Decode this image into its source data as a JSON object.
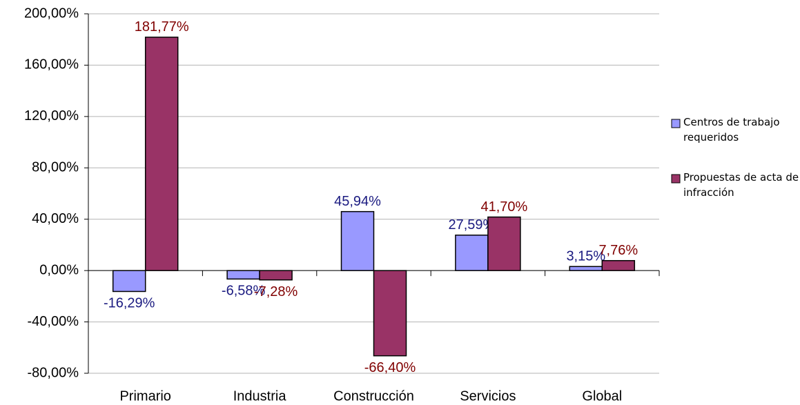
{
  "chart_data": {
    "type": "bar",
    "categories": [
      "Primario",
      "Industria",
      "Construcción",
      "Servicios",
      "Global"
    ],
    "series": [
      {
        "name": "Centros de trabajo requeridos",
        "color": "#9999ff",
        "label_color": "#1a1a80",
        "values": [
          -16.29,
          -6.58,
          45.94,
          27.59,
          3.15
        ],
        "value_labels": [
          "-16,29%",
          "-6,58%",
          "45,94%",
          "27,59%",
          "3,15%"
        ]
      },
      {
        "name": "Propuestas de acta de infracción",
        "color": "#993366",
        "label_color": "#800000",
        "values": [
          181.77,
          -7.28,
          -66.4,
          41.7,
          7.76
        ],
        "value_labels": [
          "181,77%",
          "-7,28%",
          "-66,40%",
          "41,70%",
          "7,76%"
        ]
      }
    ],
    "ylim": [
      -80,
      200
    ],
    "yticks": [
      {
        "value": -80,
        "label": "-80,00%"
      },
      {
        "value": -40,
        "label": "-40,00%"
      },
      {
        "value": 0,
        "label": "0,00%"
      },
      {
        "value": 40,
        "label": "40,00%"
      },
      {
        "value": 80,
        "label": "80,00%"
      },
      {
        "value": 120,
        "label": "120,00%"
      },
      {
        "value": 160,
        "label": "160,00%"
      },
      {
        "value": 200,
        "label": "200,00%"
      }
    ],
    "grid": true,
    "legend": "right"
  }
}
